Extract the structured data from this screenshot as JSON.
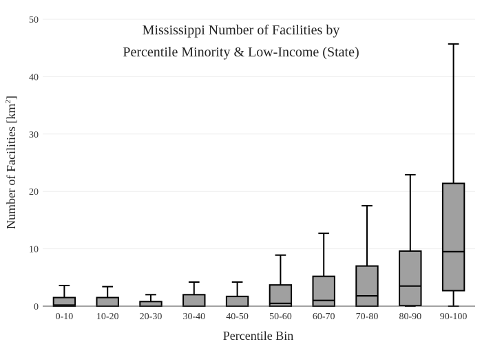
{
  "chart_data": {
    "type": "box",
    "title_lines": [
      "Mississippi Number of Facilities by",
      "Percentile Minority & Low-Income (State)"
    ],
    "xlabel": "Percentile Bin",
    "ylabel": "Number of Facilities  [km",
    "ylabel_sup": "2",
    "ylabel_close": "]",
    "ylim": [
      0,
      50
    ],
    "yticks": [
      0,
      10,
      20,
      30,
      40,
      50
    ],
    "grid": true,
    "categories": [
      "0-10",
      "10-20",
      "20-30",
      "30-40",
      "40-50",
      "50-60",
      "60-70",
      "70-80",
      "80-90",
      "90-100"
    ],
    "boxes": [
      {
        "min": 0,
        "q1": 0,
        "median": 0.2,
        "q3": 1.5,
        "max": 3.6
      },
      {
        "min": 0,
        "q1": 0,
        "median": 0,
        "q3": 1.5,
        "max": 3.4
      },
      {
        "min": 0,
        "q1": 0,
        "median": 0,
        "q3": 0.8,
        "max": 2.0
      },
      {
        "min": 0,
        "q1": 0,
        "median": 0,
        "q3": 2.0,
        "max": 4.2
      },
      {
        "min": 0,
        "q1": 0,
        "median": 0,
        "q3": 1.7,
        "max": 4.2
      },
      {
        "min": 0,
        "q1": 0,
        "median": 0.5,
        "q3": 3.7,
        "max": 8.9
      },
      {
        "min": 0,
        "q1": 0,
        "median": 1.0,
        "q3": 5.2,
        "max": 12.7
      },
      {
        "min": 0,
        "q1": 0,
        "median": 1.8,
        "q3": 7.0,
        "max": 17.5
      },
      {
        "min": 0,
        "q1": 0.1,
        "median": 3.5,
        "q3": 9.6,
        "max": 22.9
      },
      {
        "min": 0,
        "q1": 2.7,
        "median": 9.5,
        "q3": 21.4,
        "max": 45.7
      }
    ],
    "box_color": "#a0a0a0",
    "line_color": "#000000",
    "grid_color": "#eeeeee"
  }
}
